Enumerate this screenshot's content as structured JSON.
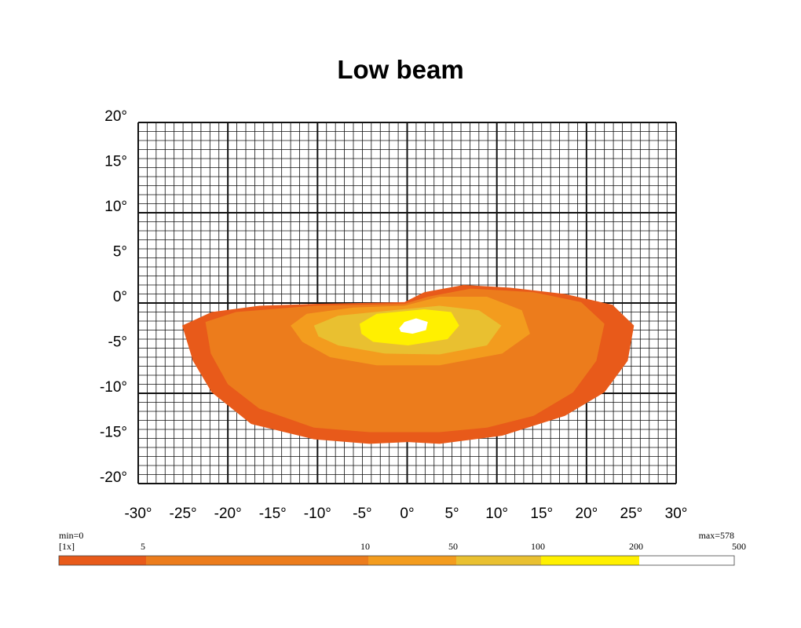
{
  "chart_data": {
    "type": "contour",
    "title": "Low beam",
    "xlim": [
      -30,
      30
    ],
    "xticks": [
      {
        "value": -30,
        "label": "-30°"
      },
      {
        "value": -25,
        "label": "-25°"
      },
      {
        "value": -20,
        "label": "-20°"
      },
      {
        "value": -15,
        "label": "-15°"
      },
      {
        "value": -10,
        "label": "-10°"
      },
      {
        "value": -5,
        "label": "-5°"
      },
      {
        "value": 0,
        "label": "0°"
      },
      {
        "value": 5,
        "label": "5°"
      },
      {
        "value": 10,
        "label": "10°"
      },
      {
        "value": 15,
        "label": "15°"
      },
      {
        "value": 20,
        "label": "20°"
      },
      {
        "value": 25,
        "label": "25°"
      },
      {
        "value": 30,
        "label": "30°"
      }
    ],
    "ylim": [
      -20,
      20
    ],
    "yticks": [
      {
        "value": 20,
        "label": "20°"
      },
      {
        "value": 15,
        "label": "15°"
      },
      {
        "value": 10,
        "label": "10°"
      },
      {
        "value": 5,
        "label": "5°"
      },
      {
        "value": 0,
        "label": "0°"
      },
      {
        "value": -5,
        "label": "-5°"
      },
      {
        "value": -10,
        "label": "-10°"
      },
      {
        "value": -15,
        "label": "-15°"
      },
      {
        "value": -20,
        "label": "-20°"
      }
    ],
    "grid": true,
    "contours": [
      {
        "color": "#e85a1a",
        "x": [
          -25.1,
          -21.8,
          -16.5,
          -10.4,
          -0.3,
          1.9,
          6.3,
          11.5,
          17.6,
          22.9,
          25.3,
          24.6,
          22.0,
          17.6,
          10.6,
          3.6,
          0.1,
          -4.2,
          -10.4,
          -17.4,
          -21.8,
          -23.9
        ],
        "y": [
          -2.5,
          -1.0,
          -0.3,
          -0.1,
          0.1,
          1.2,
          2.0,
          1.7,
          1.0,
          -0.2,
          -2.5,
          -6.4,
          -9.9,
          -12.5,
          -14.7,
          -15.6,
          -15.4,
          -15.6,
          -15.1,
          -13.4,
          -9.9,
          -6.4
        ]
      },
      {
        "color": "#ec7c1c",
        "x": [
          -22.5,
          -19.1,
          -10.4,
          -0.3,
          2.3,
          7.1,
          14.1,
          19.4,
          22.0,
          21.1,
          18.5,
          14.1,
          8.9,
          3.6,
          0.1,
          -4.2,
          -10.4,
          -16.5,
          -20.0,
          -21.9
        ],
        "y": [
          -2.1,
          -1.0,
          -0.3,
          -0.1,
          0.7,
          1.6,
          1.2,
          0.1,
          -2.3,
          -6.4,
          -9.9,
          -12.5,
          -13.8,
          -14.3,
          -14.3,
          -14.3,
          -13.8,
          -11.7,
          -9.0,
          -5.6
        ]
      },
      {
        "color": "#f39c1e",
        "x": [
          -13.0,
          -11.2,
          -6.0,
          -0.3,
          3.6,
          8.9,
          12.8,
          13.7,
          10.6,
          3.6,
          -3.4,
          -8.6,
          -11.7
        ],
        "y": [
          -2.5,
          -1.2,
          -0.5,
          -0.3,
          0.7,
          0.7,
          -0.8,
          -3.4,
          -5.6,
          -6.9,
          -6.9,
          -6.0,
          -4.3
        ]
      },
      {
        "color": "#e9c030",
        "x": [
          -10.4,
          -7.7,
          -1.6,
          3.6,
          8.0,
          10.5,
          8.9,
          3.6,
          -2.5,
          -7.7,
          -9.9
        ],
        "y": [
          -2.5,
          -1.4,
          -0.8,
          -0.3,
          -0.8,
          -2.5,
          -4.7,
          -5.7,
          -5.6,
          -4.7,
          -3.7
        ]
      },
      {
        "color": "#fff000",
        "x": [
          -5.3,
          -3.4,
          1.9,
          4.9,
          5.8,
          4.5,
          0.1,
          -3.8,
          -5.1
        ],
        "y": [
          -2.3,
          -1.2,
          -0.7,
          -1.0,
          -2.5,
          -4.0,
          -4.7,
          -4.3,
          -3.4
        ]
      },
      {
        "color": "#ffffff",
        "x": [
          -0.9,
          -0.3,
          1.0,
          2.3,
          2.1,
          0.6,
          -0.7
        ],
        "y": [
          -2.8,
          -2.1,
          -1.7,
          -2.1,
          -3.0,
          -3.4,
          -3.2
        ]
      }
    ],
    "color_scale": {
      "min_label": "min=0",
      "unit_label": "[1x]",
      "max_label": "max=578",
      "ticks": [
        5,
        10,
        50,
        100,
        200,
        500
      ],
      "colors": [
        "#e85a1a",
        "#ec7c1c",
        "#f39c1e",
        "#e9c030",
        "#fff000",
        "#ffffff"
      ]
    }
  }
}
